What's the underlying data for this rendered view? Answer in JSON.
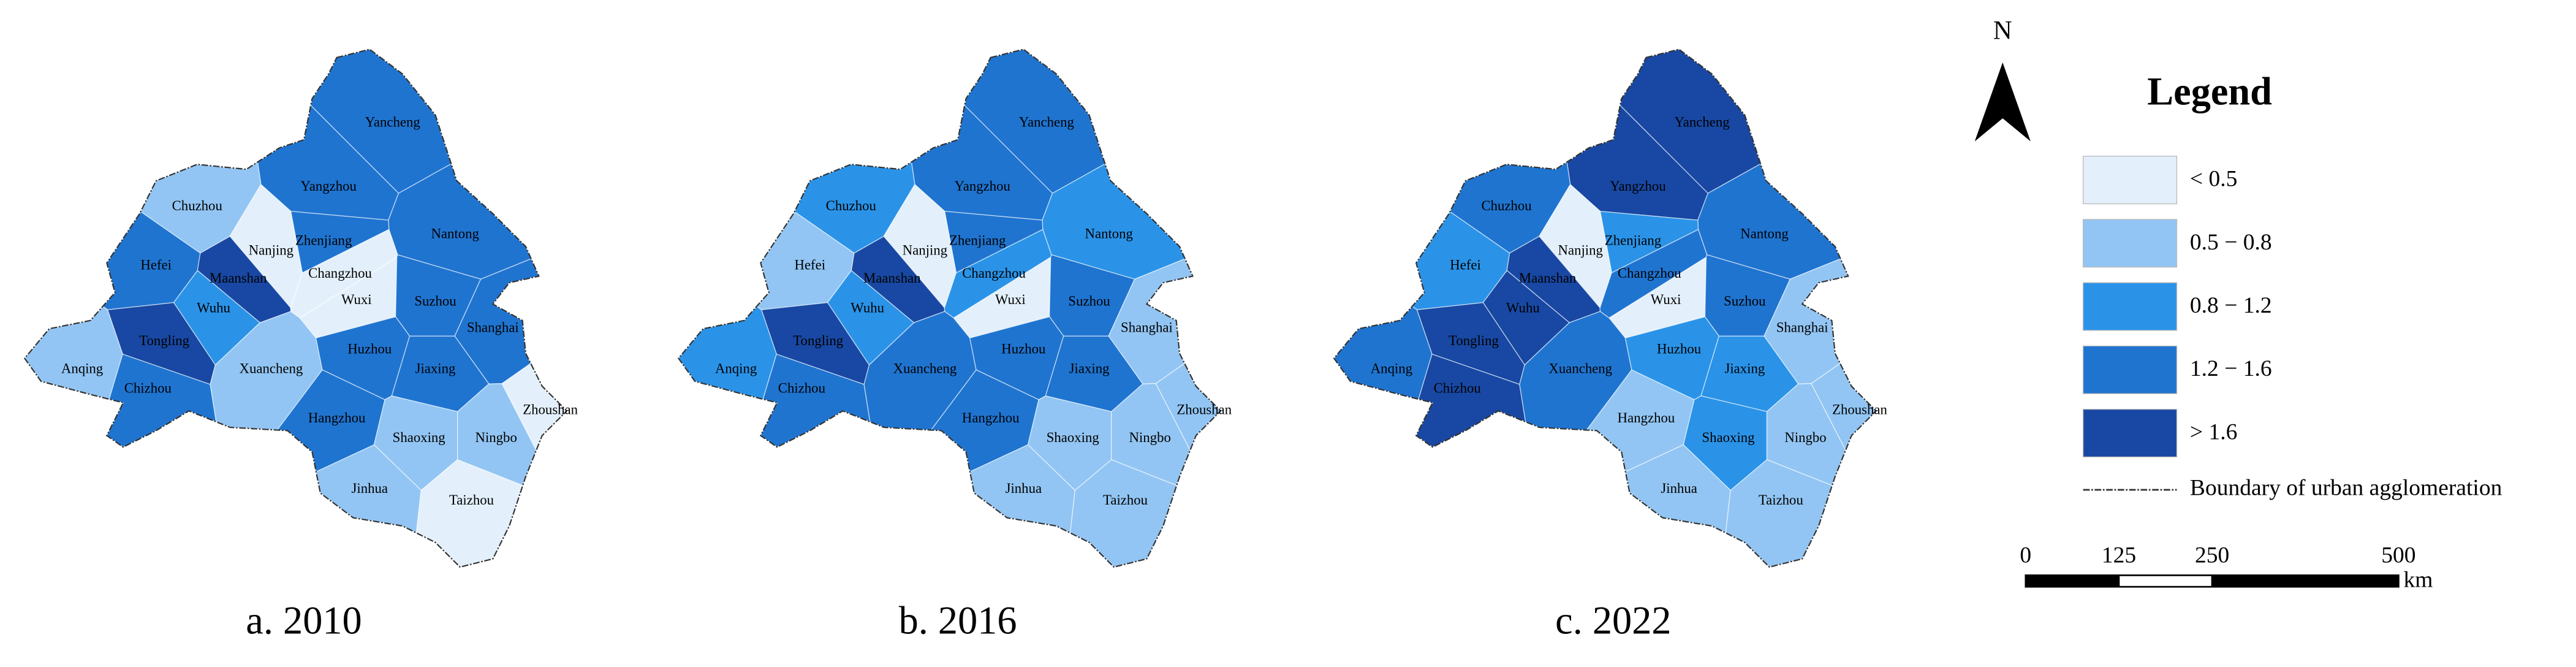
{
  "north": "N",
  "legend": {
    "title": "Legend",
    "items": [
      {
        "label": "< 0.5",
        "color": "#e3f0fb"
      },
      {
        "label": "0.5 − 0.8",
        "color": "#92c5f3"
      },
      {
        "label": "0.8 − 1.2",
        "color": "#2a93e8"
      },
      {
        "label": "1.2 − 1.6",
        "color": "#1f74d0"
      },
      {
        "label": "> 1.6",
        "color": "#1848a3"
      }
    ],
    "boundary_label": "Boundary of urban agglomeration"
  },
  "scale_bar": {
    "ticks": [
      0,
      125,
      250,
      500
    ],
    "unit": "km"
  },
  "maps": [
    {
      "caption": "a. 2010",
      "cities": [
        {
          "name": "Yancheng",
          "color": "#1f74d0"
        },
        {
          "name": "Yangzhou",
          "color": "#1f74d0"
        },
        {
          "name": "Chuzhou",
          "color": "#92c5f3"
        },
        {
          "name": "Nantong",
          "color": "#1f74d0"
        },
        {
          "name": "Zhenjiang",
          "color": "#1f74d0"
        },
        {
          "name": "Nanjing",
          "color": "#e3f0fb"
        },
        {
          "name": "Hefei",
          "color": "#1f74d0"
        },
        {
          "name": "Maanshan",
          "color": "#1848a3"
        },
        {
          "name": "Changzhou",
          "color": "#e3f0fb"
        },
        {
          "name": "Wuxi",
          "color": "#e3f0fb"
        },
        {
          "name": "Suzhou",
          "color": "#1f74d0"
        },
        {
          "name": "Wuhu",
          "color": "#2a93e8"
        },
        {
          "name": "Tongling",
          "color": "#1848a3"
        },
        {
          "name": "Shanghai",
          "color": "#1f74d0"
        },
        {
          "name": "Anqing",
          "color": "#92c5f3"
        },
        {
          "name": "Chizhou",
          "color": "#1f74d0"
        },
        {
          "name": "Xuancheng",
          "color": "#92c5f3"
        },
        {
          "name": "Huzhou",
          "color": "#1f74d0"
        },
        {
          "name": "Jiaxing",
          "color": "#1f74d0"
        },
        {
          "name": "Hangzhou",
          "color": "#1f74d0"
        },
        {
          "name": "Shaoxing",
          "color": "#92c5f3"
        },
        {
          "name": "Ningbo",
          "color": "#92c5f3"
        },
        {
          "name": "Zhoushan",
          "color": "#e3f0fb"
        },
        {
          "name": "Jinhua",
          "color": "#92c5f3"
        },
        {
          "name": "Taizhou",
          "color": "#e3f0fb"
        }
      ]
    },
    {
      "caption": "b. 2016",
      "cities": [
        {
          "name": "Yancheng",
          "color": "#1f74d0"
        },
        {
          "name": "Yangzhou",
          "color": "#1f74d0"
        },
        {
          "name": "Chuzhou",
          "color": "#2a93e8"
        },
        {
          "name": "Nantong",
          "color": "#2a93e8"
        },
        {
          "name": "Zhenjiang",
          "color": "#1f74d0"
        },
        {
          "name": "Nanjing",
          "color": "#e3f0fb"
        },
        {
          "name": "Hefei",
          "color": "#92c5f3"
        },
        {
          "name": "Maanshan",
          "color": "#1848a3"
        },
        {
          "name": "Changzhou",
          "color": "#2a93e8"
        },
        {
          "name": "Wuxi",
          "color": "#e3f0fb"
        },
        {
          "name": "Suzhou",
          "color": "#1f74d0"
        },
        {
          "name": "Wuhu",
          "color": "#2a93e8"
        },
        {
          "name": "Tongling",
          "color": "#1848a3"
        },
        {
          "name": "Shanghai",
          "color": "#92c5f3"
        },
        {
          "name": "Anqing",
          "color": "#2a93e8"
        },
        {
          "name": "Chizhou",
          "color": "#1f74d0"
        },
        {
          "name": "Xuancheng",
          "color": "#1f74d0"
        },
        {
          "name": "Huzhou",
          "color": "#1f74d0"
        },
        {
          "name": "Jiaxing",
          "color": "#1f74d0"
        },
        {
          "name": "Hangzhou",
          "color": "#1f74d0"
        },
        {
          "name": "Shaoxing",
          "color": "#92c5f3"
        },
        {
          "name": "Ningbo",
          "color": "#92c5f3"
        },
        {
          "name": "Zhoushan",
          "color": "#92c5f3"
        },
        {
          "name": "Jinhua",
          "color": "#92c5f3"
        },
        {
          "name": "Taizhou",
          "color": "#92c5f3"
        }
      ]
    },
    {
      "caption": "c. 2022",
      "cities": [
        {
          "name": "Yancheng",
          "color": "#1848a3"
        },
        {
          "name": "Yangzhou",
          "color": "#1848a3"
        },
        {
          "name": "Chuzhou",
          "color": "#1f74d0"
        },
        {
          "name": "Nantong",
          "color": "#1f74d0"
        },
        {
          "name": "Zhenjiang",
          "color": "#2a93e8"
        },
        {
          "name": "Nanjing",
          "color": "#e3f0fb"
        },
        {
          "name": "Hefei",
          "color": "#2a93e8"
        },
        {
          "name": "Maanshan",
          "color": "#1848a3"
        },
        {
          "name": "Changzhou",
          "color": "#1f74d0"
        },
        {
          "name": "Wuxi",
          "color": "#e3f0fb"
        },
        {
          "name": "Suzhou",
          "color": "#1f74d0"
        },
        {
          "name": "Wuhu",
          "color": "#1848a3"
        },
        {
          "name": "Tongling",
          "color": "#1848a3"
        },
        {
          "name": "Shanghai",
          "color": "#92c5f3"
        },
        {
          "name": "Anqing",
          "color": "#1f74d0"
        },
        {
          "name": "Chizhou",
          "color": "#1848a3"
        },
        {
          "name": "Xuancheng",
          "color": "#1f74d0"
        },
        {
          "name": "Huzhou",
          "color": "#2a93e8"
        },
        {
          "name": "Jiaxing",
          "color": "#2a93e8"
        },
        {
          "name": "Hangzhou",
          "color": "#92c5f3"
        },
        {
          "name": "Shaoxing",
          "color": "#2a93e8"
        },
        {
          "name": "Ningbo",
          "color": "#92c5f3"
        },
        {
          "name": "Zhoushan",
          "color": "#92c5f3"
        },
        {
          "name": "Jinhua",
          "color": "#92c5f3"
        },
        {
          "name": "Taizhou",
          "color": "#92c5f3"
        }
      ]
    }
  ]
}
